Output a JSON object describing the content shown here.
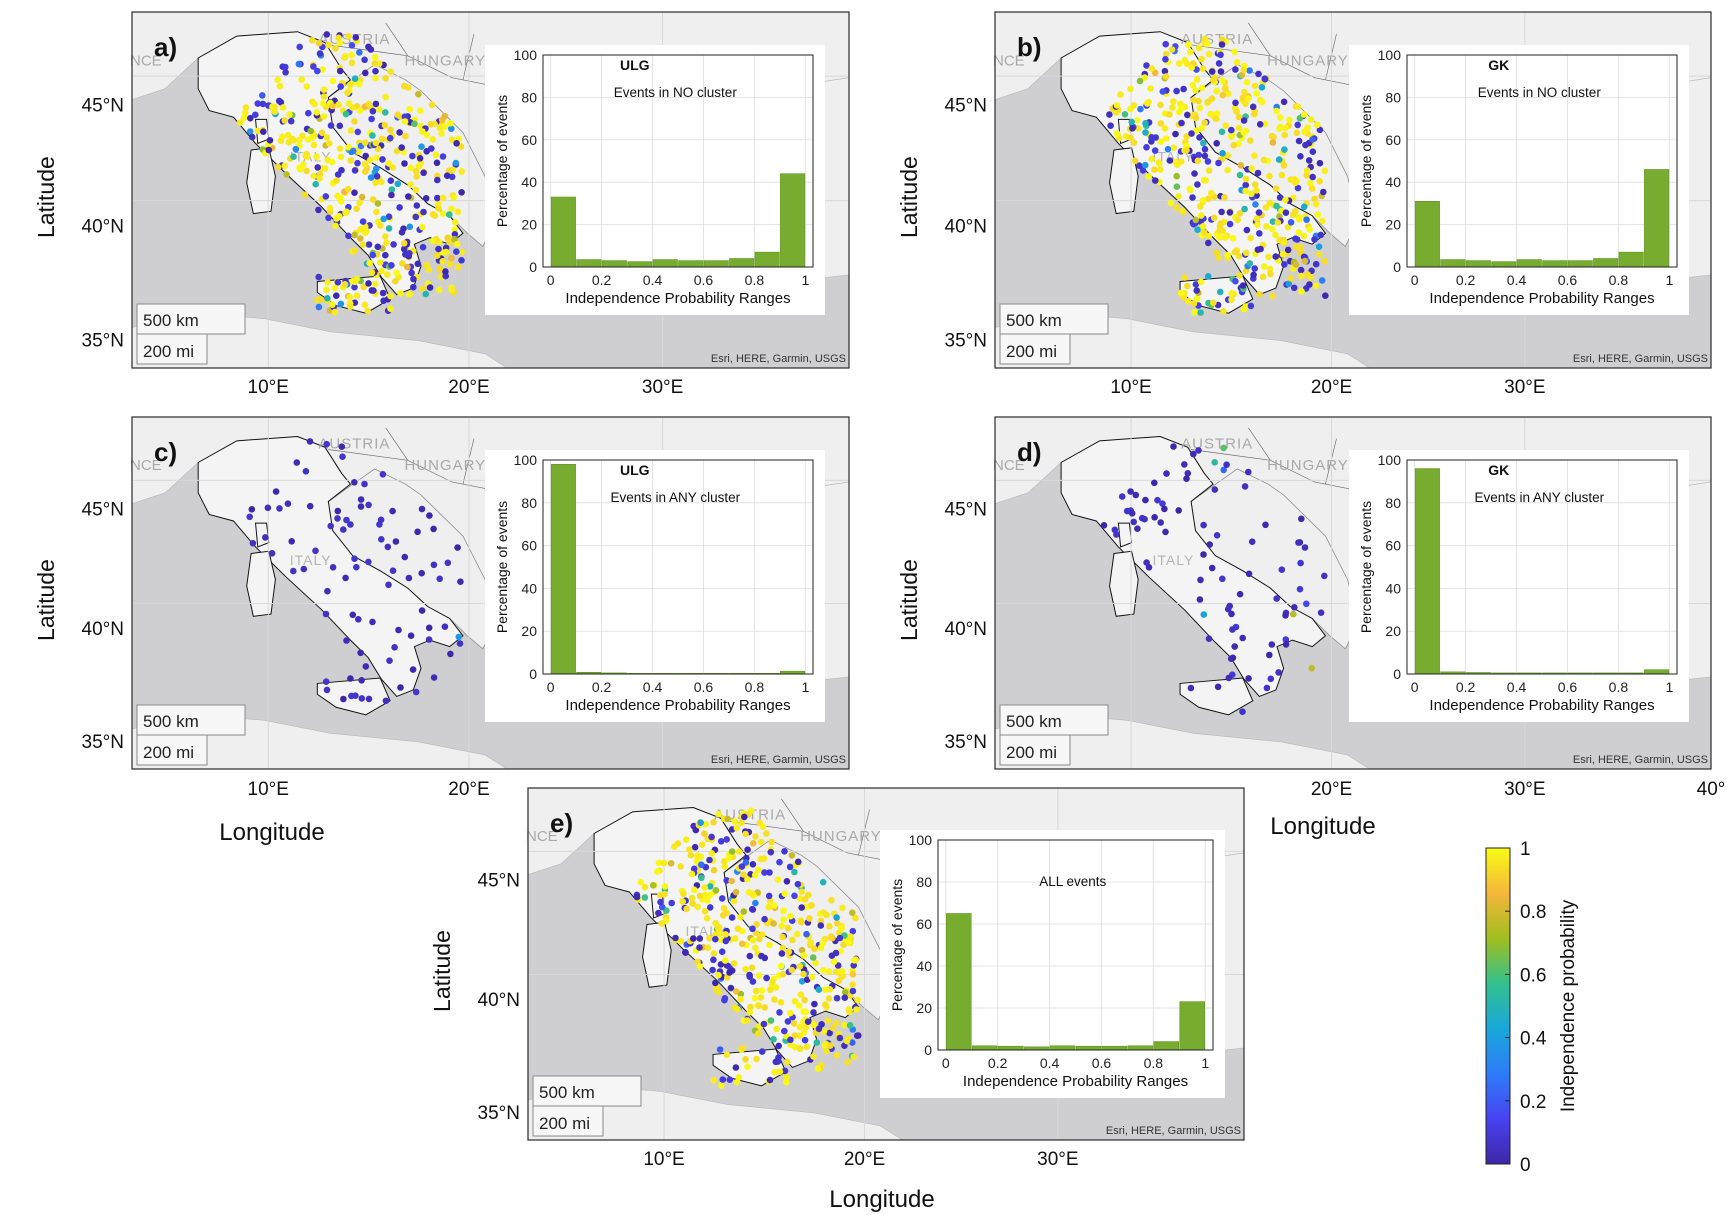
{
  "figure": {
    "map_ticks": {
      "lat": [
        "45°N",
        "40°N",
        "35°N"
      ],
      "lon": [
        "10°E",
        "20°E",
        "30°E",
        "40°"
      ]
    },
    "map_labels": {
      "latitude": "Latitude",
      "longitude": "Longitude",
      "austria": "AUSTRIA",
      "hungary": "HUNGARY",
      "italy": "ITALY",
      "nce": "NCE",
      "scale_km": "500 km",
      "scale_mi": "200 mi",
      "attribution": "Esri, HERE, Garmin, USGS"
    },
    "colorbar": {
      "label": "Independence probability",
      "ticks": [
        "0",
        "0.2",
        "0.4",
        "0.6",
        "0.8",
        "1"
      ],
      "colormap": [
        "#3e26a8",
        "#4743f0",
        "#2d7cf8",
        "#19a7d9",
        "#33c08e",
        "#a1be20",
        "#f4b63b",
        "#f9fb15"
      ]
    },
    "colors": {
      "bar": "#77ac30",
      "bar_edge": "#5f9420",
      "land": "#f2f2f2",
      "sea": "#cfcfd1",
      "map_border": "#2a2a2a"
    }
  },
  "chart_data": [
    {
      "panel": "a)",
      "type": "bar",
      "method": "ULG",
      "subtitle": "Events in NO cluster",
      "xlabel": "Independence Probability Ranges",
      "ylabel": "Percentage of events",
      "bins": [
        0.05,
        0.15,
        0.25,
        0.35,
        0.45,
        0.55,
        0.65,
        0.75,
        0.85,
        0.95
      ],
      "values": [
        33,
        3.5,
        3.0,
        2.5,
        3.5,
        3.0,
        3.0,
        4.0,
        7.0,
        44
      ],
      "xticks": [
        "0",
        "0.2",
        "0.4",
        "0.6",
        "0.8",
        "1"
      ],
      "yticks": [
        "0",
        "20",
        "40",
        "60",
        "80",
        "100"
      ],
      "ylim": [
        0,
        100
      ],
      "xlim": [
        -0.03,
        1.03
      ],
      "grid": true,
      "map_points": "mixed"
    },
    {
      "panel": "b)",
      "type": "bar",
      "method": "GK",
      "subtitle": "Events in NO cluster",
      "xlabel": "Independence Probability Ranges",
      "ylabel": "Percentage of events",
      "bins": [
        0.05,
        0.15,
        0.25,
        0.35,
        0.45,
        0.55,
        0.65,
        0.75,
        0.85,
        0.95
      ],
      "values": [
        31,
        3.5,
        3.0,
        2.5,
        3.5,
        3.0,
        3.0,
        4.0,
        7.0,
        46
      ],
      "xticks": [
        "0",
        "0.2",
        "0.4",
        "0.6",
        "0.8",
        "1"
      ],
      "yticks": [
        "0",
        "20",
        "40",
        "60",
        "80",
        "100"
      ],
      "ylim": [
        0,
        100
      ],
      "xlim": [
        -0.03,
        1.03
      ],
      "grid": true,
      "map_points": "mixed"
    },
    {
      "panel": "c)",
      "type": "bar",
      "method": "ULG",
      "subtitle": "Events in ANY cluster",
      "xlabel": "Independence Probability Ranges",
      "ylabel": "Percentage of events",
      "bins": [
        0.05,
        0.15,
        0.25,
        0.35,
        0.45,
        0.55,
        0.65,
        0.75,
        0.85,
        0.95
      ],
      "values": [
        98,
        0.8,
        0.5,
        0.3,
        0.3,
        0.3,
        0.3,
        0.3,
        0.3,
        1.3
      ],
      "xticks": [
        "0",
        "0.2",
        "0.4",
        "0.6",
        "0.8",
        "1"
      ],
      "yticks": [
        "0",
        "20",
        "40",
        "60",
        "80",
        "100"
      ],
      "ylim": [
        0,
        100
      ],
      "xlim": [
        -0.03,
        1.03
      ],
      "grid": true,
      "map_points": "clustered"
    },
    {
      "panel": "d)",
      "type": "bar",
      "method": "GK",
      "subtitle": "Events in ANY cluster",
      "xlabel": "Independence Probability Ranges",
      "ylabel": "Percentage of events",
      "bins": [
        0.05,
        0.15,
        0.25,
        0.35,
        0.45,
        0.55,
        0.65,
        0.75,
        0.85,
        0.95
      ],
      "values": [
        96,
        1.0,
        0.7,
        0.5,
        0.5,
        0.5,
        0.5,
        0.5,
        0.5,
        2.0
      ],
      "xticks": [
        "0",
        "0.2",
        "0.4",
        "0.6",
        "0.8",
        "1"
      ],
      "yticks": [
        "0",
        "20",
        "40",
        "60",
        "80",
        "100"
      ],
      "ylim": [
        0,
        100
      ],
      "xlim": [
        -0.03,
        1.03
      ],
      "grid": true,
      "map_points": "clustered_gk"
    },
    {
      "panel": "e)",
      "type": "bar",
      "method": "",
      "subtitle": "ALL events",
      "xlabel": "Independence Probability Ranges",
      "ylabel": "Percentage of events",
      "bins": [
        0.05,
        0.15,
        0.25,
        0.35,
        0.45,
        0.55,
        0.65,
        0.75,
        0.85,
        0.95
      ],
      "values": [
        65,
        2.0,
        1.8,
        1.5,
        2.0,
        1.8,
        1.8,
        2.0,
        4.0,
        23
      ],
      "xticks": [
        "0",
        "0.2",
        "0.4",
        "0.6",
        "0.8",
        "1"
      ],
      "yticks": [
        "0",
        "20",
        "40",
        "60",
        "80",
        "100"
      ],
      "ylim": [
        0,
        100
      ],
      "xlim": [
        -0.03,
        1.03
      ],
      "grid": true,
      "map_points": "mixed"
    }
  ]
}
